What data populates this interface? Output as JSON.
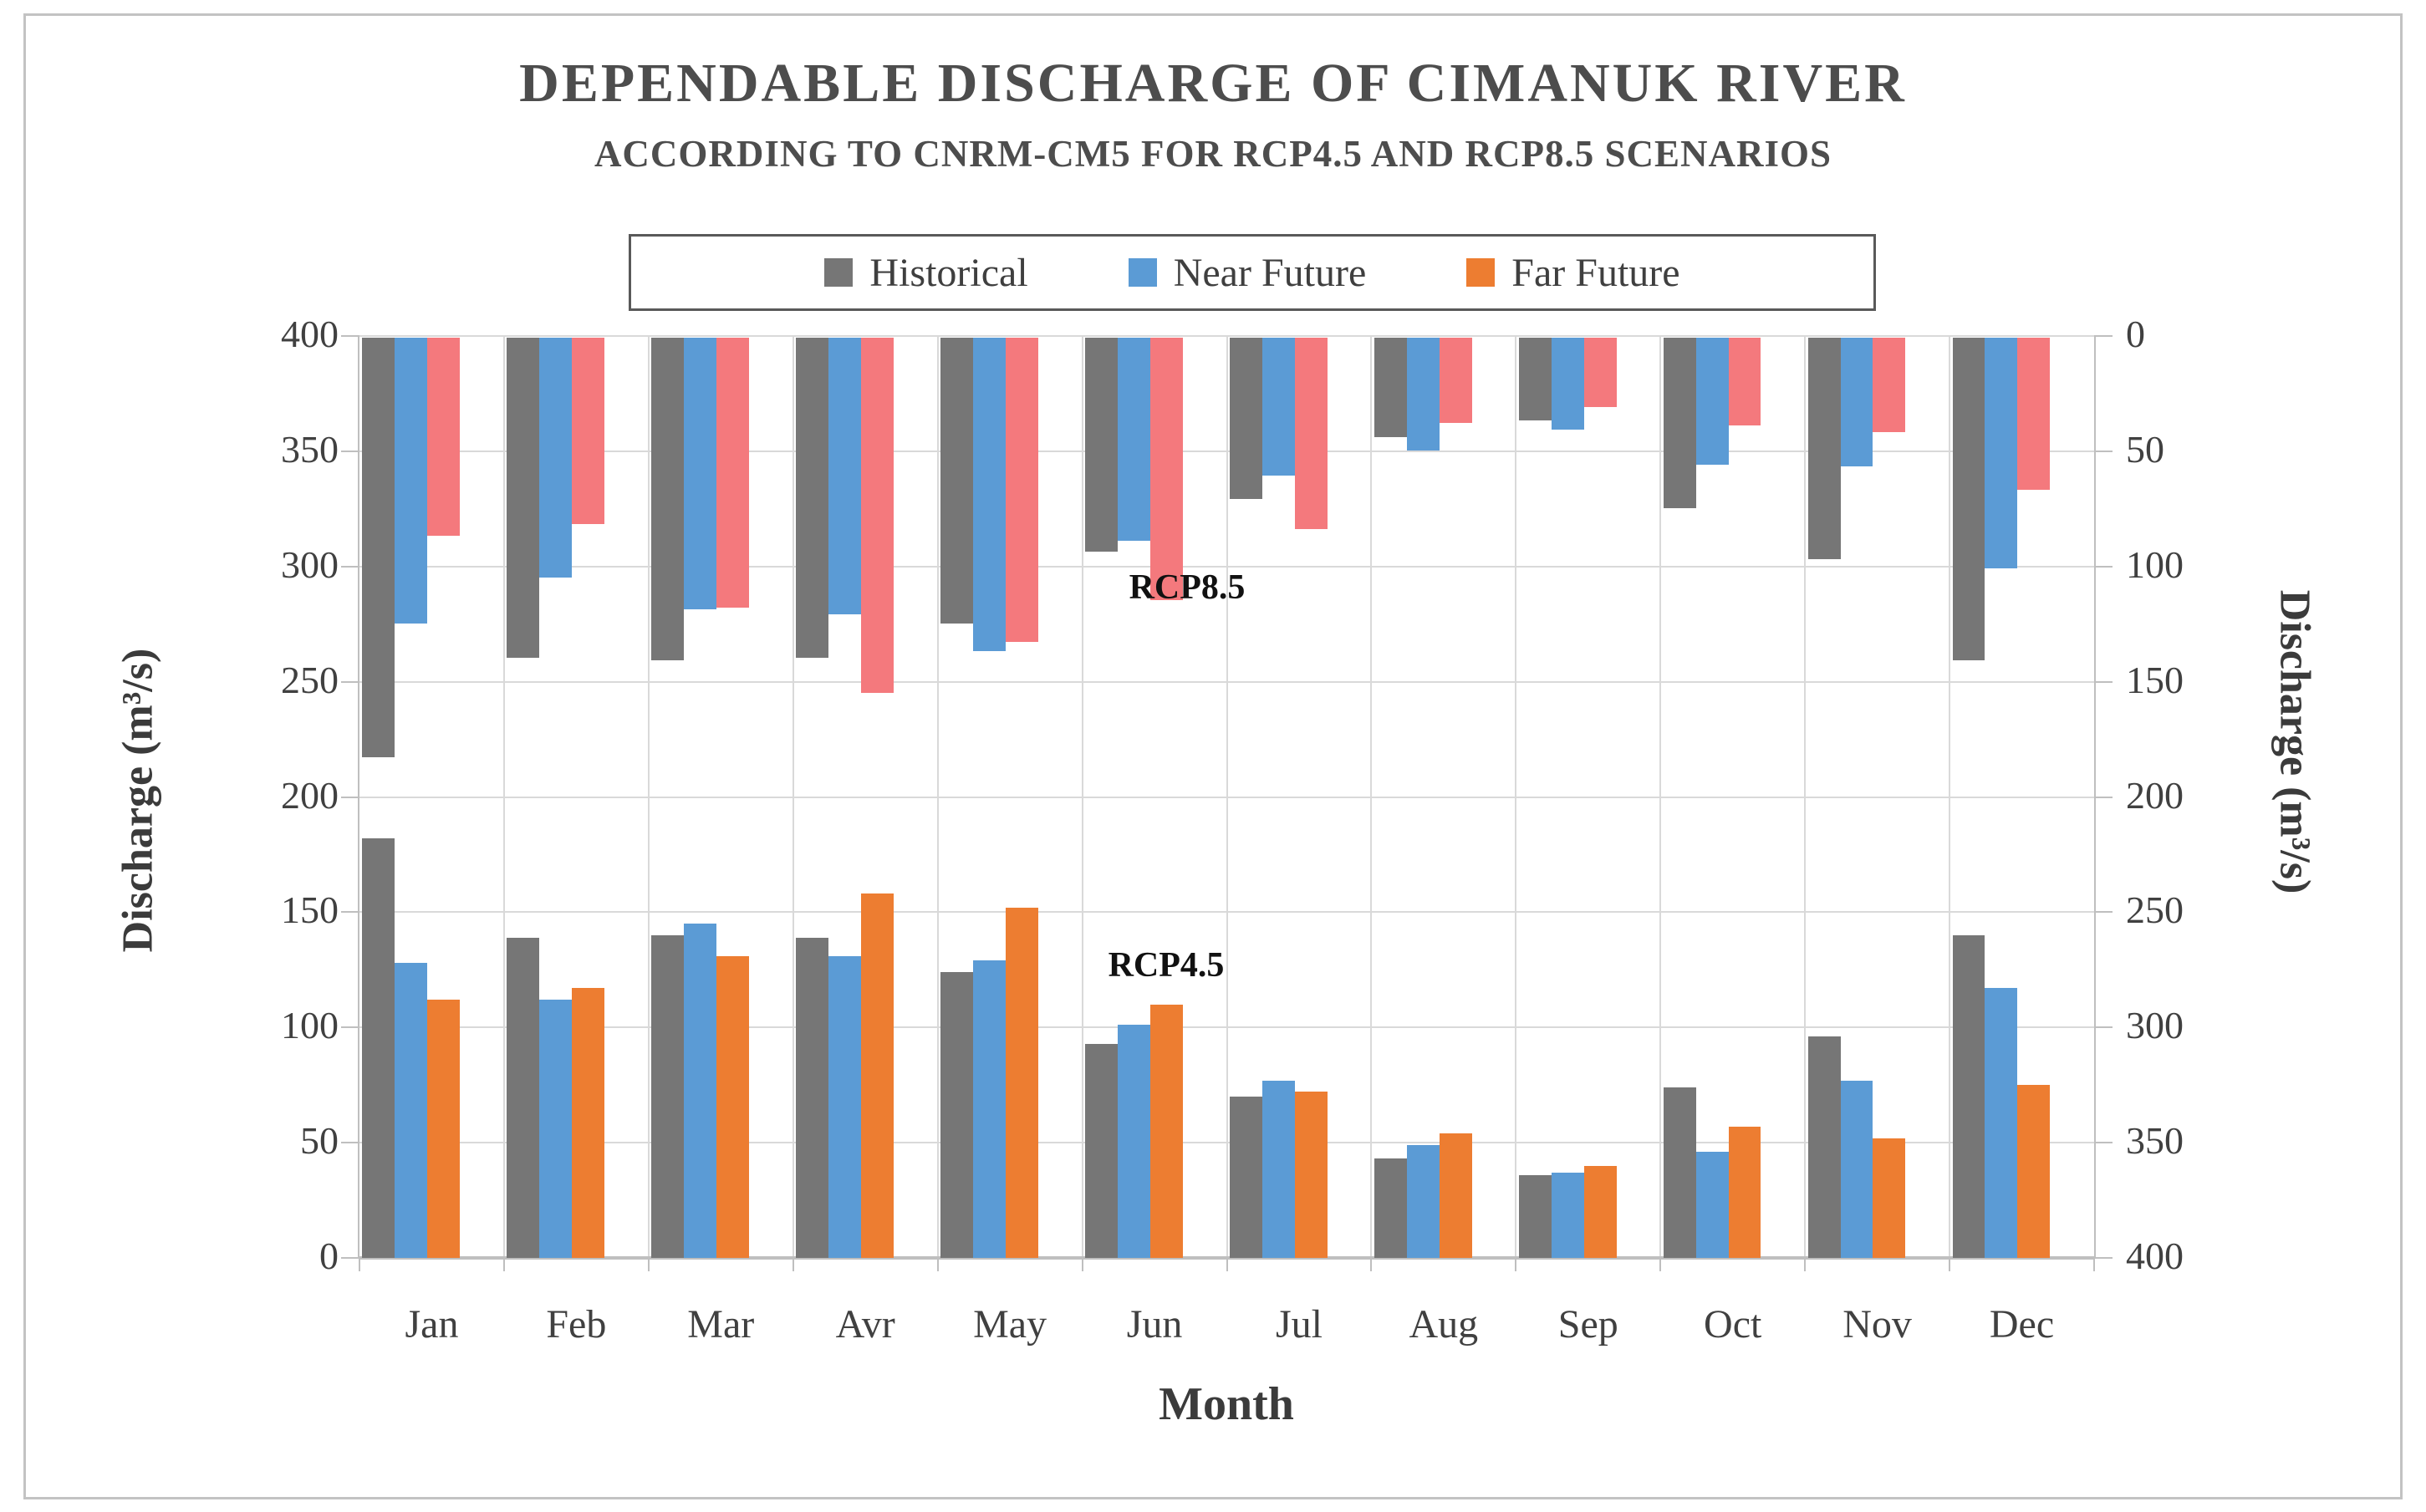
{
  "page": {
    "title": "DEPENDABLE DISCHARGE OF CIMANUK RIVER",
    "subtitle": "ACCORDING TO CNRM-CM5  FOR RCP4.5 AND RCP8.5 SCENARIOS"
  },
  "legend": {
    "position": "top-center-boxed",
    "entries": [
      {
        "name": "Historical",
        "color": "#767676"
      },
      {
        "name": "Near Future",
        "color": "#5B9BD5"
      },
      {
        "name": "Far Future",
        "color": "#ED7D31"
      }
    ]
  },
  "chart_data": {
    "type": "bar",
    "title": "DEPENDABLE DISCHARGE OF CIMANUK RIVER",
    "subtitle": "ACCORDING TO CNRM-CM5  FOR RCP4.5 AND RCP8.5 SCENARIOS",
    "categories": [
      "Jan",
      "Feb",
      "Mar",
      "Avr",
      "May",
      "Jun",
      "Jul",
      "Aug",
      "Sep",
      "Oct",
      "Nov",
      "Dec"
    ],
    "xlabel": "Month",
    "ylabel_left": "Discharge (m³/s)",
    "ylabel_right": "Discharge (m³/s)",
    "ylim": [
      0,
      400
    ],
    "yticks": [
      0,
      50,
      100,
      150,
      200,
      250,
      300,
      350,
      400
    ],
    "left_axis": "0 at bottom, used by upward RCP4.5 bars",
    "right_axis": "0 at top, used by downward-hanging RCP8.5 bars",
    "grid": true,
    "panels": [
      {
        "name": "RCP8.5",
        "direction": "down",
        "annotation": {
          "text": "RCP8.5",
          "x": 1420,
          "y": 703
        },
        "series": [
          {
            "name": "Historical",
            "color": "#767676",
            "values": [
              182,
              139,
              140,
              139,
              124,
              93,
              70,
              43,
              36,
              74,
              96,
              140
            ]
          },
          {
            "name": "Near Future",
            "color": "#5B9BD5",
            "values": [
              124,
              104,
              118,
              120,
              136,
              88,
              60,
              49,
              40,
              55,
              56,
              100
            ]
          },
          {
            "name": "Far Future",
            "color": "#F4797D",
            "values": [
              86,
              81,
              117,
              154,
              132,
              114,
              83,
              37,
              30,
              38,
              41,
              66
            ]
          }
        ]
      },
      {
        "name": "RCP4.5",
        "direction": "up",
        "annotation": {
          "text": "RCP4.5",
          "x": 1395,
          "y": 1155
        },
        "series": [
          {
            "name": "Historical",
            "color": "#767676",
            "values": [
              182,
              139,
              140,
              139,
              124,
              93,
              70,
              43,
              36,
              74,
              96,
              140
            ]
          },
          {
            "name": "Near Future",
            "color": "#5B9BD5",
            "values": [
              128,
              112,
              145,
              131,
              129,
              101,
              77,
              49,
              37,
              46,
              77,
              117
            ]
          },
          {
            "name": "Far Future",
            "color": "#ED7D31",
            "values": [
              112,
              117,
              131,
              158,
              152,
              110,
              72,
              54,
              40,
              57,
              52,
              75
            ]
          }
        ]
      }
    ]
  }
}
